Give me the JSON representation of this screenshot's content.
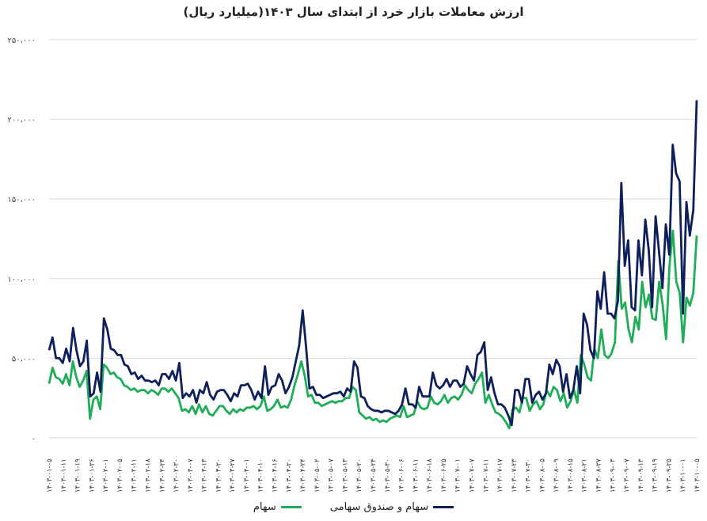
{
  "chart_data": {
    "type": "line",
    "title": "ارزش معاملات بازار خرد از ابتدای سال ۱۴۰۳(میلیارد ریال)",
    "xlabel": "",
    "ylabel": "",
    "ylim": [
      0,
      250000
    ],
    "yticks": [
      0,
      50000,
      100000,
      150000,
      200000,
      250000
    ],
    "ytick_labels": [
      "۰",
      "۵۰،۰۰۰",
      "۱۰۰،۰۰۰",
      "۱۵۰،۰۰۰",
      "۲۰۰،۰۰۰",
      "۲۵۰،۰۰۰"
    ],
    "grid": true,
    "legend_position": "bottom",
    "x_tick_labels": [
      "۱۴۰۳-۰۱-۰۵",
      "۱۴۰۳-۰۱-۱۱",
      "۱۴۰۳-۰۱-۱۹",
      "۱۴۰۳-۰۱-۲۶",
      "۱۴۰۳-۰۲-۰۱",
      "۱۴۰۳-۰۲-۰۵",
      "۱۴۰۳-۰۲-۱۱",
      "۱۴۰۳-۰۲-۱۸",
      "۱۴۰۳-۰۲-۲۴",
      "۱۴۰۳-۰۲-۳۰",
      "۱۴۰۳-۰۳-۰۷",
      "۱۴۰۳-۰۳-۱۳",
      "۱۴۰۳-۰۳-۲۰",
      "۱۴۰۳-۰۳-۲۷",
      "۱۴۰۳-۰۴-۰۱",
      "۱۴۰۳-۰۴-۱۰",
      "۱۴۰۳-۰۴-۱۶",
      "۱۴۰۳-۰۴-۲۰",
      "۱۴۰۳-۰۴-۲۴",
      "۱۴۰۳-۰۵-۰۲",
      "۱۴۰۳-۰۵-۰۷",
      "۱۴۰۳-۰۵-۱۳",
      "۱۴۰۳-۰۵-۲۰",
      "۱۴۰۳-۰۵-۲۴",
      "۱۴۰۳-۰۵-۳۰",
      "۱۴۰۳-۰۶-۰۶",
      "۱۴۰۳-۰۶-۱۱",
      "۱۴۰۳-۰۶-۱۸",
      "۱۴۰۳-۰۶-۲۵",
      "۱۴۰۳-۰۷-۰۱",
      "۱۴۰۳-۰۷-۰۷",
      "۱۴۰۳-۰۷-۱۱",
      "۱۴۰۳-۰۷-۱۷",
      "۱۴۰۳-۰۷-۲۳",
      "۱۴۰۳-۰۷-۳۰",
      "۱۴۰۳-۰۸-۰۵",
      "۱۴۰۳-۰۸-۰۹",
      "۱۴۰۳-۰۸-۱۵",
      "۱۴۰۳-۰۸-۲۱",
      "۱۴۰۳-۰۸-۲۷",
      "۱۴۰۳-۰۹-۰۳",
      "۱۴۰۳-۰۹-۰۷",
      "۱۴۰۳-۰۹-۱۳",
      "۱۴۰۳-۰۹-۱۹",
      "۱۴۰۳-۰۹-۲۵",
      "۱۴۰۳-۱۰-۰۱",
      "۱۴۰۳-۱۰-۰۵"
    ],
    "series": [
      {
        "name": "سهام و صندوق سهامی",
        "color": "#0d1f5c",
        "values": [
          55000,
          63000,
          50000,
          50000,
          47000,
          56000,
          48000,
          69000,
          55000,
          45000,
          48000,
          61000,
          26000,
          28000,
          41000,
          29000,
          75000,
          68000,
          56000,
          55000,
          52000,
          52000,
          46000,
          45000,
          40000,
          41000,
          37000,
          39000,
          36000,
          36000,
          35000,
          36000,
          33000,
          40000,
          40000,
          37000,
          42000,
          36000,
          47000,
          25000,
          28000,
          26000,
          30000,
          22000,
          30000,
          28000,
          35000,
          27000,
          24000,
          29000,
          30000,
          30000,
          27000,
          23000,
          28000,
          26000,
          33000,
          33000,
          34000,
          30000,
          24000,
          29000,
          25000,
          45000,
          27000,
          32000,
          33000,
          40000,
          36000,
          28000,
          32000,
          38000,
          48000,
          58000,
          80000,
          57000,
          31000,
          32000,
          27000,
          27000,
          25000,
          26000,
          27000,
          28000,
          28000,
          29000,
          26000,
          31000,
          29000,
          48000,
          44000,
          26000,
          25000,
          20000,
          18000,
          17000,
          17000,
          16000,
          17000,
          17000,
          16000,
          15000,
          17000,
          21000,
          31000,
          21000,
          21000,
          19000,
          32000,
          26000,
          26000,
          26000,
          41000,
          33000,
          31000,
          33000,
          37000,
          32000,
          36000,
          36000,
          32000,
          34000,
          45000,
          40000,
          36000,
          52000,
          54000,
          60000,
          30000,
          38000,
          28000,
          21000,
          21000,
          19000,
          14000,
          8000,
          30000,
          30000,
          22000,
          37000,
          37000,
          22000,
          27000,
          29000,
          24000,
          28000,
          46000,
          40000,
          49000,
          45000,
          29000,
          40000,
          25000,
          30000,
          45000,
          28000,
          78000,
          71000,
          55000,
          50000,
          92000,
          81000,
          104000,
          78000,
          78000,
          75000,
          86000,
          160000,
          108000,
          124000,
          82000,
          80000,
          124000,
          102000,
          137000,
          118000,
          82000,
          139000,
          117000,
          94000,
          134000,
          115000,
          184000,
          166000,
          161000,
          78000,
          148000,
          127000,
          143000,
          212000
        ]
      },
      {
        "name": "سهام",
        "color": "#1fae57",
        "values": [
          34000,
          44000,
          38000,
          37000,
          34000,
          40000,
          33000,
          48000,
          38000,
          32000,
          36000,
          42000,
          12000,
          24000,
          26000,
          18000,
          46000,
          44000,
          40000,
          41000,
          38000,
          37000,
          33000,
          32000,
          30000,
          31000,
          29000,
          30000,
          30000,
          28000,
          30000,
          29000,
          27000,
          31000,
          31000,
          29000,
          31000,
          28000,
          25000,
          17000,
          18000,
          16000,
          20000,
          15000,
          21000,
          16000,
          20000,
          15000,
          14000,
          17000,
          20000,
          20000,
          17000,
          15000,
          18000,
          16000,
          18000,
          17000,
          19000,
          19000,
          20000,
          18000,
          20000,
          26000,
          17000,
          18000,
          20000,
          24000,
          19000,
          20000,
          19000,
          24000,
          33000,
          40000,
          48000,
          39000,
          26000,
          27000,
          22000,
          22000,
          20000,
          21000,
          22000,
          23000,
          22000,
          23000,
          23000,
          25000,
          25000,
          32000,
          30000,
          16000,
          14000,
          12000,
          13000,
          11000,
          12000,
          10000,
          11000,
          10000,
          12000,
          13000,
          14000,
          13000,
          20000,
          13000,
          14000,
          15000,
          23000,
          19000,
          18000,
          19000,
          26000,
          22000,
          21000,
          23000,
          27000,
          22000,
          25000,
          26000,
          24000,
          27000,
          33000,
          30000,
          28000,
          34000,
          37000,
          41000,
          22000,
          27000,
          21000,
          16000,
          15000,
          13000,
          10000,
          6000,
          18000,
          19000,
          16000,
          25000,
          25000,
          17000,
          21000,
          23000,
          18000,
          21000,
          30000,
          26000,
          32000,
          30000,
          23000,
          28000,
          19000,
          23000,
          30000,
          22000,
          52000,
          46000,
          38000,
          36000,
          56000,
          50000,
          68000,
          52000,
          50000,
          53000,
          60000,
          111000,
          81000,
          85000,
          68000,
          60000,
          76000,
          68000,
          98000,
          82000,
          90000,
          75000,
          74000,
          98000,
          84000,
          62000,
          108000,
          130000,
          98000,
          91000,
          60000,
          88000,
          83000,
          91000,
          127000
        ]
      }
    ]
  },
  "legend": {
    "items": [
      {
        "label": "سهام و صندوق سهامی",
        "color": "#0d1f5c"
      },
      {
        "label": "سهام",
        "color": "#1fae57"
      }
    ]
  }
}
